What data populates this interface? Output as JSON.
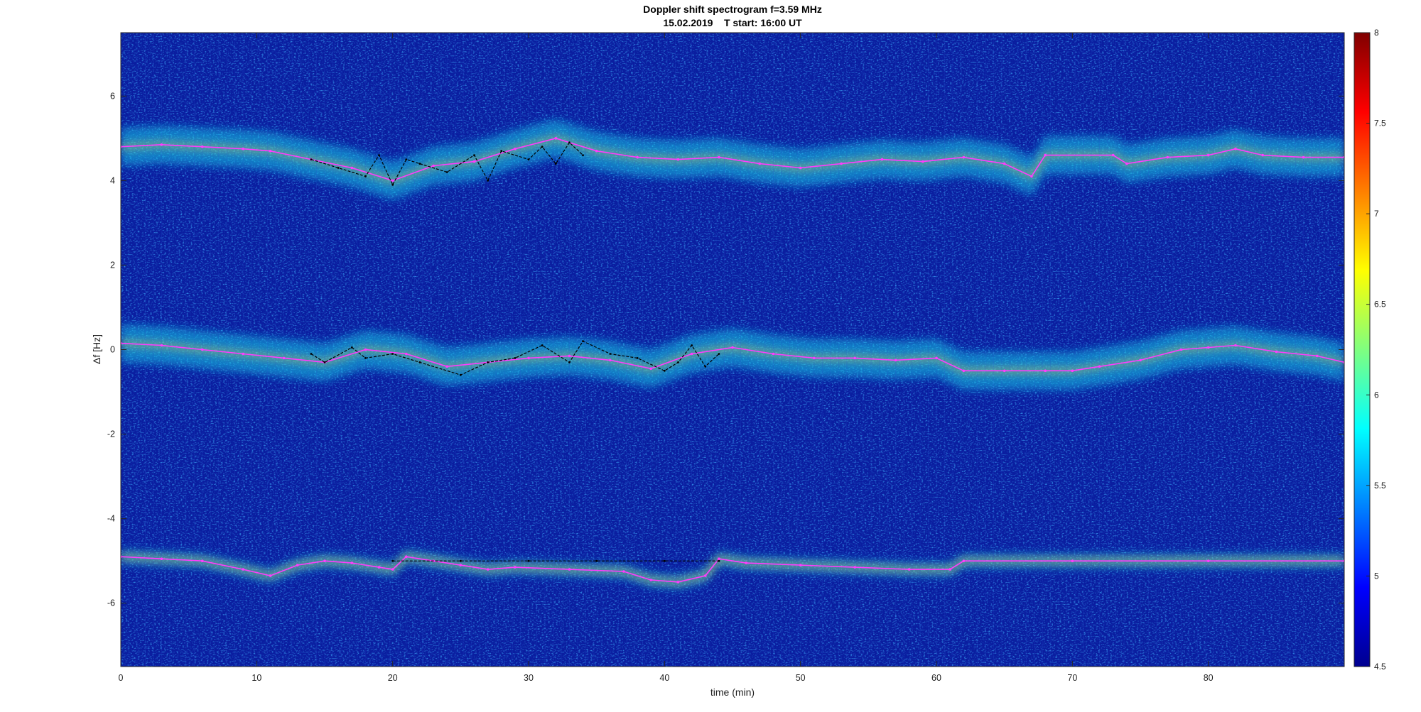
{
  "chart_data": {
    "type": "heatmap",
    "title": "Doppler shift spectrogram f=3.59 MHz",
    "subtitle": "15.02.2019    T start: 16:00 UT",
    "xlabel": "time (min)",
    "ylabel": "Δf [Hz]",
    "xlim": [
      0,
      90
    ],
    "ylim": [
      -7.5,
      7.5
    ],
    "x_ticks": [
      "0",
      "10",
      "20",
      "30",
      "40",
      "50",
      "60",
      "70",
      "80"
    ],
    "x_tick_values": [
      0,
      10,
      20,
      30,
      40,
      50,
      60,
      70,
      80
    ],
    "y_ticks": [
      "-6",
      "-4",
      "-2",
      "0",
      "2",
      "4",
      "6"
    ],
    "y_tick_values": [
      -6,
      -4,
      -2,
      0,
      2,
      4,
      6
    ],
    "colormap": "jet",
    "colorbar": {
      "min": 4.5,
      "max": 8,
      "ticks": [
        "4.5",
        "5",
        "5.5",
        "6",
        "6.5",
        "7",
        "7.5",
        "8"
      ],
      "tick_values": [
        4.5,
        5,
        5.5,
        6,
        6.5,
        7,
        7.5,
        8
      ]
    },
    "grid": false,
    "series": [
      {
        "color": "#ff3cff",
        "x": [
          0,
          3,
          6,
          9,
          11,
          14,
          17,
          20,
          23,
          26,
          29,
          32,
          35,
          38,
          41,
          44,
          47,
          50,
          53,
          56,
          59,
          62,
          65,
          67,
          68,
          73,
          74,
          77,
          80,
          82,
          84,
          87,
          90
        ],
        "y": [
          4.8,
          4.85,
          4.8,
          4.75,
          4.7,
          4.5,
          4.3,
          4.0,
          4.35,
          4.45,
          4.75,
          5.0,
          4.7,
          4.55,
          4.5,
          4.55,
          4.4,
          4.3,
          4.4,
          4.5,
          4.45,
          4.55,
          4.4,
          4.1,
          4.6,
          4.6,
          4.4,
          4.55,
          4.6,
          4.75,
          4.6,
          4.55,
          4.55
        ]
      },
      {
        "color": "#ff3cff",
        "x": [
          0,
          3,
          6,
          9,
          12,
          15,
          18,
          21,
          24,
          27,
          30,
          33,
          36,
          39,
          42,
          45,
          48,
          51,
          54,
          57,
          60,
          62,
          65,
          68,
          70,
          72,
          75,
          78,
          80,
          82,
          85,
          88,
          90
        ],
        "y": [
          0.15,
          0.1,
          0.0,
          -0.1,
          -0.2,
          -0.3,
          0.0,
          -0.1,
          -0.4,
          -0.3,
          -0.2,
          -0.15,
          -0.25,
          -0.45,
          -0.1,
          0.05,
          -0.1,
          -0.2,
          -0.2,
          -0.25,
          -0.2,
          -0.5,
          -0.5,
          -0.5,
          -0.5,
          -0.4,
          -0.25,
          0.0,
          0.05,
          0.1,
          -0.05,
          -0.15,
          -0.3
        ]
      },
      {
        "color": "#ff3cff",
        "x": [
          0,
          3,
          6,
          9,
          11,
          13,
          15,
          17,
          19,
          20,
          21,
          23,
          25,
          27,
          29,
          33,
          37,
          39,
          41,
          43,
          44,
          46,
          50,
          54,
          58,
          61,
          62,
          70,
          80,
          90
        ],
        "y": [
          -4.9,
          -4.95,
          -5.0,
          -5.2,
          -5.35,
          -5.1,
          -5.0,
          -5.05,
          -5.15,
          -5.2,
          -4.9,
          -5.0,
          -5.1,
          -5.2,
          -5.15,
          -5.2,
          -5.25,
          -5.45,
          -5.5,
          -5.35,
          -4.95,
          -5.05,
          -5.1,
          -5.15,
          -5.2,
          -5.2,
          -5.0,
          -5.0,
          -5.0,
          -5.0
        ]
      },
      {
        "color": "#000000",
        "x": [
          14,
          16,
          18,
          19,
          20,
          21,
          22,
          24,
          26,
          27,
          28,
          30,
          31,
          32,
          33,
          34
        ],
        "y": [
          4.5,
          4.3,
          4.1,
          4.6,
          3.9,
          4.5,
          4.4,
          4.2,
          4.6,
          4.0,
          4.7,
          4.5,
          4.8,
          4.4,
          4.9,
          4.6
        ]
      },
      {
        "color": "#000000",
        "x": [
          14,
          15,
          17,
          18,
          20,
          22,
          25,
          27,
          29,
          31,
          33,
          34,
          36,
          38,
          40,
          41,
          42,
          43,
          44
        ],
        "y": [
          -0.1,
          -0.3,
          0.05,
          -0.2,
          -0.1,
          -0.3,
          -0.6,
          -0.3,
          -0.2,
          0.1,
          -0.3,
          0.2,
          -0.1,
          -0.2,
          -0.5,
          -0.3,
          0.1,
          -0.4,
          -0.1
        ]
      },
      {
        "color": "#000000",
        "x": [
          20,
          25,
          30,
          35,
          40,
          44
        ],
        "y": [
          -5.0,
          -5.0,
          -5.0,
          -5.0,
          -5.0,
          -5.0
        ]
      }
    ]
  }
}
